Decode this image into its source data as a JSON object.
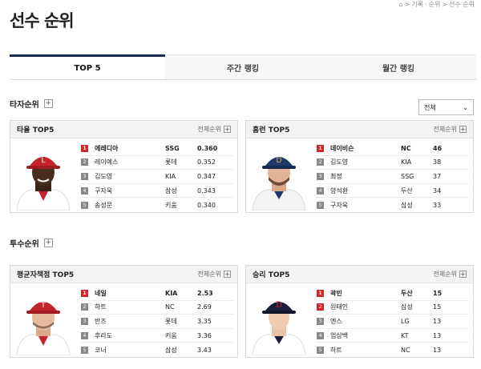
{
  "page": {
    "title": "선수 순위"
  },
  "breadcrumb": {
    "items": [
      "기록",
      "순위",
      "선수 순위"
    ]
  },
  "tabs": [
    {
      "label": "TOP 5",
      "active": true
    },
    {
      "label": "주간 랭킹",
      "active": false
    },
    {
      "label": "월간 랭킹",
      "active": false
    }
  ],
  "filter": {
    "selected": "전체"
  },
  "more_label": "전체순위",
  "batting": {
    "section_title": "타자순위",
    "cards": [
      {
        "title": "타율 TOP5",
        "rows": [
          {
            "rank": "1",
            "name": "에레디아",
            "team": "SSG",
            "value": "0.360"
          },
          {
            "rank": "2",
            "name": "레이예스",
            "team": "롯데",
            "value": "0.352"
          },
          {
            "rank": "3",
            "name": "김도영",
            "team": "KIA",
            "value": "0.347"
          },
          {
            "rank": "4",
            "name": "구자욱",
            "team": "삼성",
            "value": "0.343"
          },
          {
            "rank": "5",
            "name": "송성문",
            "team": "키움",
            "value": "0.340"
          }
        ]
      },
      {
        "title": "홈런 TOP5",
        "rows": [
          {
            "rank": "1",
            "name": "데이비슨",
            "team": "NC",
            "value": "46"
          },
          {
            "rank": "2",
            "name": "김도영",
            "team": "KIA",
            "value": "38"
          },
          {
            "rank": "3",
            "name": "최정",
            "team": "SSG",
            "value": "37"
          },
          {
            "rank": "4",
            "name": "양석환",
            "team": "두산",
            "value": "34"
          },
          {
            "rank": "5",
            "name": "구자욱",
            "team": "삼성",
            "value": "33"
          }
        ]
      }
    ]
  },
  "pitching": {
    "section_title": "투수순위",
    "cards": [
      {
        "title": "평균자책점 TOP5",
        "rows": [
          {
            "rank": "1",
            "name": "네일",
            "team": "KIA",
            "value": "2.53"
          },
          {
            "rank": "2",
            "name": "하트",
            "team": "NC",
            "value": "2.69"
          },
          {
            "rank": "3",
            "name": "반즈",
            "team": "롯데",
            "value": "3.35"
          },
          {
            "rank": "4",
            "name": "후라도",
            "team": "키움",
            "value": "3.36"
          },
          {
            "rank": "5",
            "name": "코너",
            "team": "삼성",
            "value": "3.43"
          }
        ]
      },
      {
        "title": "승리 TOP5",
        "rows": [
          {
            "rank": "1",
            "name": "곽빈",
            "team": "두산",
            "value": "15"
          },
          {
            "rank": "2",
            "name": "원태인",
            "team": "삼성",
            "value": "15"
          },
          {
            "rank": "3",
            "name": "엔스",
            "team": "LG",
            "value": "13"
          },
          {
            "rank": "4",
            "name": "엄상백",
            "team": "KT",
            "value": "13"
          },
          {
            "rank": "5",
            "name": "하트",
            "team": "NC",
            "value": "13"
          }
        ]
      }
    ]
  },
  "colors": {
    "accent": "#1b2a57",
    "rank_first": "#d4252a",
    "rank_other": "#888888"
  }
}
